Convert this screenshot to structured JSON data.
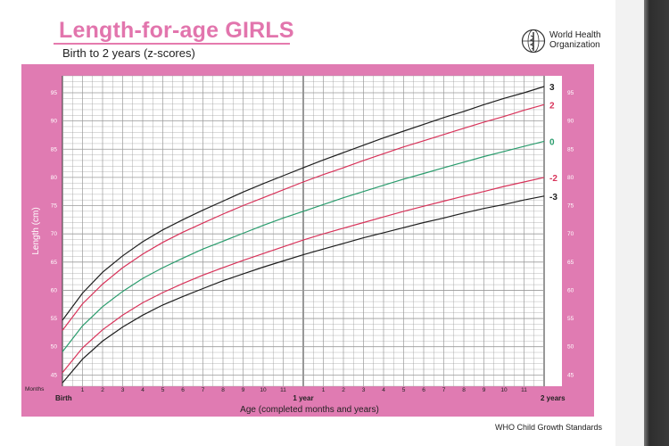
{
  "header": {
    "title": "Length-for-age GIRLS",
    "subtitle": "Birth to 2 years (z-scores)",
    "org_line1": "World Health",
    "org_line2": "Organization"
  },
  "footer": {
    "text": "WHO Child Growth Standards"
  },
  "colors": {
    "pink_frame": "#e07bb2",
    "grid": "#9a9a9a",
    "black_line": "#1f1f1f",
    "red_line": "#d8335a",
    "green_line": "#2a9c6d"
  },
  "chart_data": {
    "type": "line",
    "xlabel": "Age (completed months and years)",
    "ylabel": "Length (cm)",
    "xlim": [
      0,
      24
    ],
    "ylim": [
      43,
      98
    ],
    "x_tick_labels": [
      "Birth",
      "1",
      "2",
      "3",
      "4",
      "5",
      "6",
      "7",
      "8",
      "9",
      "10",
      "11",
      "1 year",
      "1",
      "2",
      "3",
      "4",
      "5",
      "6",
      "7",
      "8",
      "9",
      "10",
      "11",
      "2 years"
    ],
    "x_axis_prefix": "Months",
    "y_ticks": [
      45,
      50,
      55,
      60,
      65,
      70,
      75,
      80,
      85,
      90,
      95
    ],
    "x": [
      0,
      1,
      2,
      3,
      4,
      5,
      6,
      7,
      8,
      9,
      10,
      11,
      12,
      13,
      14,
      15,
      16,
      17,
      18,
      19,
      20,
      21,
      22,
      23,
      24
    ],
    "series": [
      {
        "name": "3",
        "color": "#1f1f1f",
        "values": [
          54.7,
          59.5,
          63.2,
          66.1,
          68.6,
          70.7,
          72.5,
          74.2,
          75.8,
          77.4,
          78.9,
          80.3,
          81.7,
          83.1,
          84.4,
          85.7,
          87.0,
          88.2,
          89.4,
          90.6,
          91.7,
          92.9,
          94.0,
          95.0,
          96.1
        ]
      },
      {
        "name": "2",
        "color": "#d8335a",
        "values": [
          52.9,
          57.6,
          61.1,
          64.0,
          66.4,
          68.5,
          70.3,
          71.9,
          73.5,
          75.0,
          76.4,
          77.8,
          79.2,
          80.5,
          81.7,
          83.0,
          84.2,
          85.4,
          86.5,
          87.6,
          88.7,
          89.8,
          90.8,
          91.9,
          92.9
        ]
      },
      {
        "name": "0",
        "color": "#2a9c6d",
        "values": [
          49.1,
          53.7,
          57.1,
          59.8,
          62.1,
          64.0,
          65.7,
          67.3,
          68.7,
          70.1,
          71.5,
          72.8,
          74.0,
          75.2,
          76.4,
          77.5,
          78.6,
          79.7,
          80.7,
          81.7,
          82.7,
          83.7,
          84.6,
          85.5,
          86.4
        ]
      },
      {
        "name": "-2",
        "color": "#d8335a",
        "values": [
          45.4,
          49.8,
          53.0,
          55.6,
          57.8,
          59.6,
          61.2,
          62.7,
          64.0,
          65.3,
          66.5,
          67.7,
          68.9,
          70.0,
          71.0,
          72.0,
          73.0,
          74.0,
          74.9,
          75.8,
          76.7,
          77.5,
          78.4,
          79.2,
          80.0
        ]
      },
      {
        "name": "-3",
        "color": "#1f1f1f",
        "values": [
          43.6,
          47.8,
          51.0,
          53.5,
          55.6,
          57.4,
          58.9,
          60.3,
          61.7,
          62.9,
          64.1,
          65.2,
          66.3,
          67.3,
          68.3,
          69.3,
          70.2,
          71.1,
          72.0,
          72.8,
          73.7,
          74.5,
          75.2,
          76.0,
          76.7
        ]
      }
    ]
  }
}
